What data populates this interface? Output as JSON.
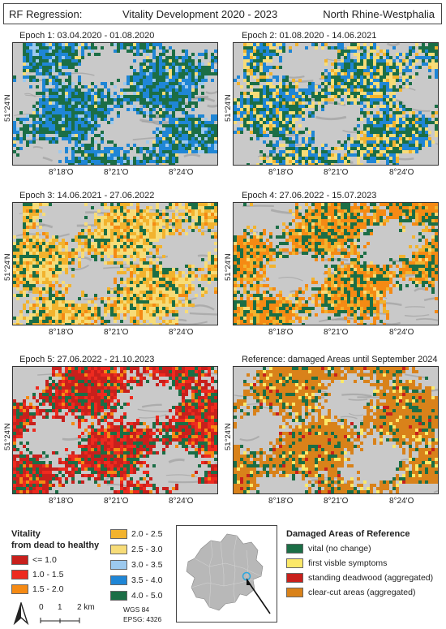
{
  "header": {
    "left": "RF Regression:",
    "center": "Vitality Development 2020 - 2023",
    "right": "North Rhine-Westphalia"
  },
  "panels": [
    {
      "title": "Epoch 1: 03.04.2020 - 01.08.2020",
      "scheme": "blue"
    },
    {
      "title": "Epoch 2: 01.08.2020 - 14.06.2021",
      "scheme": "blueyellow"
    },
    {
      "title": "Epoch 3: 14.06.2021 - 27.06.2022",
      "scheme": "yellow"
    },
    {
      "title": "Epoch 4: 27.06.2022 - 15.07.2023",
      "scheme": "orange"
    },
    {
      "title": "Epoch 5: 27.06.2022 - 21.10.2023",
      "scheme": "red"
    },
    {
      "title": "Reference: damaged Areas until September 2024",
      "scheme": "reference"
    }
  ],
  "axis": {
    "lat_label": "51°24'N",
    "lon_labels": [
      "8°18'O",
      "8°21'O",
      "8°24'O"
    ]
  },
  "vitality_legend": {
    "title_line1": "Vitality",
    "title_line2": "from dead to healthy",
    "classes": [
      {
        "label": "<= 1.0",
        "color": "#c8201c"
      },
      {
        "label": "1.0 - 1.5",
        "color": "#ee2a1f"
      },
      {
        "label": "1.5 - 2.0",
        "color": "#f58a14"
      },
      {
        "label": "2.0 - 2.5",
        "color": "#f2b32e"
      },
      {
        "label": "2.5 - 3.0",
        "color": "#f7dc78"
      },
      {
        "label": "3.0 - 3.5",
        "color": "#9cc9ee"
      },
      {
        "label": "3.5 - 4.0",
        "color": "#1f86d6"
      },
      {
        "label": "4.0 - 5.0",
        "color": "#1b6e46"
      }
    ]
  },
  "scale": {
    "ticks": [
      "0",
      "1",
      "2 km"
    ],
    "crs_line1": "WGS 84",
    "crs_line2": "EPSG: 4326"
  },
  "damaged_legend": {
    "title": "Damaged Areas of Reference",
    "classes": [
      {
        "label": "vital (no change)",
        "color": "#1b6e46"
      },
      {
        "label": "first visble symptoms",
        "color": "#fbe868"
      },
      {
        "label": "standing deadwood (aggregated)",
        "color": "#c8201c"
      },
      {
        "label": "clear-cut areas (aggregated)",
        "color": "#d9821a"
      }
    ]
  },
  "colors": {
    "hillshade_light": "#c9c9c9",
    "hillshade_dark": "#9a9a9a",
    "inset_region": "#b8b8b8",
    "study_area_marker": "#2aa8e0"
  }
}
